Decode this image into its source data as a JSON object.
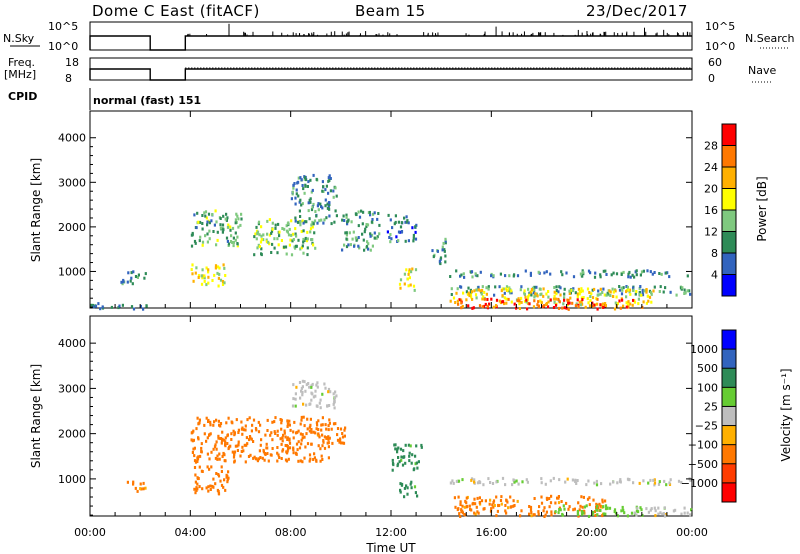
{
  "header": {
    "station": "Dome C East (fitACF)",
    "beam": "Beam 15",
    "date": "23/Dec/2017"
  },
  "strips": {
    "nsky_label": "N.Sky",
    "nsearch_label": "N.Search",
    "freq_label_1": "Freq.",
    "freq_label_2": "[MHz]",
    "nave_label": "Nave",
    "cpid_label": "CPID",
    "cpid_value": "normal (fast) 151",
    "left_ticks_top": [
      "10^5",
      "10^0"
    ],
    "right_ticks_top": [
      "10^5",
      "10^0"
    ],
    "left_ticks_freq": [
      "18",
      "8"
    ],
    "right_ticks_nave": [
      "60",
      "0"
    ]
  },
  "axes": {
    "xlabel": "Time UT",
    "ylabel": "Slant Range [km]",
    "x_ticks": [
      "00:00",
      "04:00",
      "08:00",
      "12:00",
      "16:00",
      "20:00",
      "00:00"
    ],
    "y_ticks": [
      "1000",
      "2000",
      "3000",
      "4000"
    ]
  },
  "power_colorbar": {
    "label": "Power [dB]",
    "ticks": [
      "4",
      "8",
      "12",
      "16",
      "20",
      "24",
      "28"
    ],
    "colors": [
      "#0000ff",
      "#3264be",
      "#2e8b57",
      "#7fc97f",
      "#ffff00",
      "#ffb000",
      "#ff7800",
      "#ff0000"
    ]
  },
  "velocity_colorbar": {
    "label": "Velocity [m s⁻¹]",
    "ticks": [
      "1000",
      "500",
      "100",
      "25",
      "−25",
      "−100",
      "−500",
      "−1000"
    ],
    "colors": [
      "#0000ff",
      "#3264be",
      "#2e8b57",
      "#66cc33",
      "#bebebe",
      "#ffb000",
      "#ff7800",
      "#ff3c00",
      "#ff0000"
    ]
  },
  "chart_data": [
    {
      "type": "line",
      "panel": "N.Sky / N.Search",
      "x_unit": "hours UT",
      "xlim": [
        0,
        24
      ],
      "series": [
        {
          "x": [
            0,
            2.4,
            2.4,
            3.8,
            3.8,
            24
          ],
          "values": [
            "high",
            "high",
            "gap",
            "gap",
            "high",
            "high"
          ]
        }
      ]
    },
    {
      "type": "line",
      "panel": "Freq. / Nave",
      "x_unit": "hours UT",
      "xlim": [
        0,
        24
      ],
      "ylim": [
        8,
        18
      ],
      "data_gap_hours": [
        2.4,
        3.8
      ]
    },
    {
      "type": "heatmap",
      "panel": "Power",
      "x_unit": "hours UT",
      "xlim": [
        0,
        24
      ],
      "ylabel": "Slant Range [km]",
      "ylim": [
        180,
        4600
      ],
      "clim": [
        0,
        30
      ],
      "regions": [
        {
          "t": [
            1.2,
            2.2
          ],
          "r": [
            750,
            1050
          ],
          "v": 9
        },
        {
          "t": [
            4.0,
            5.4
          ],
          "r": [
            700,
            1200
          ],
          "v": 19
        },
        {
          "t": [
            4.0,
            6.0
          ],
          "r": [
            1600,
            2400
          ],
          "v": 12
        },
        {
          "t": [
            6.5,
            9.0
          ],
          "r": [
            1400,
            2200
          ],
          "v": 14
        },
        {
          "t": [
            8.0,
            9.8
          ],
          "r": [
            2100,
            3200
          ],
          "v": 9
        },
        {
          "t": [
            10.0,
            11.5
          ],
          "r": [
            1500,
            2400
          ],
          "v": 11
        },
        {
          "t": [
            11.8,
            13.0
          ],
          "r": [
            1700,
            2300
          ],
          "v": 8
        },
        {
          "t": [
            12.3,
            13.0
          ],
          "r": [
            600,
            1100
          ],
          "v": 18
        },
        {
          "t": [
            13.6,
            14.2
          ],
          "r": [
            1200,
            1800
          ],
          "v": 9
        },
        {
          "t": [
            14.3,
            24.0
          ],
          "r": [
            900,
            1050
          ],
          "v": 9
        },
        {
          "t": [
            14.3,
            24.0
          ],
          "r": [
            500,
            700
          ],
          "v": 10
        },
        {
          "t": [
            14.3,
            22.5
          ],
          "r": [
            280,
            650
          ],
          "v": 19
        },
        {
          "t": [
            14.5,
            22.0
          ],
          "r": [
            180,
            420
          ],
          "v": 27
        },
        {
          "t": [
            0.0,
            2.4
          ],
          "r": [
            180,
            320
          ],
          "v": 7
        }
      ]
    },
    {
      "type": "heatmap",
      "panel": "Velocity",
      "x_unit": "hours UT",
      "xlim": [
        0,
        24
      ],
      "ylabel": "Slant Range [km]",
      "ylim": [
        180,
        4600
      ],
      "regions": [
        {
          "t": [
            1.4,
            2.2
          ],
          "r": [
            750,
            1000
          ],
          "v": -150
        },
        {
          "t": [
            4.0,
            5.5
          ],
          "r": [
            700,
            1300
          ],
          "v": -300
        },
        {
          "t": [
            4.0,
            9.5
          ],
          "r": [
            1400,
            2400
          ],
          "v": -200
        },
        {
          "t": [
            8.0,
            9.8
          ],
          "r": [
            2600,
            3200
          ],
          "v": 0
        },
        {
          "t": [
            9.0,
            10.2
          ],
          "r": [
            1800,
            2300
          ],
          "v": -150
        },
        {
          "t": [
            12.3,
            13.0
          ],
          "r": [
            600,
            1000
          ],
          "v": 150
        },
        {
          "t": [
            12.0,
            13.2
          ],
          "r": [
            1200,
            1800
          ],
          "v": 150
        },
        {
          "t": [
            14.3,
            24.0
          ],
          "r": [
            900,
            1050
          ],
          "v": 0
        },
        {
          "t": [
            14.5,
            20.5
          ],
          "r": [
            200,
            650
          ],
          "v": -150
        },
        {
          "t": [
            18.5,
            22.0
          ],
          "r": [
            200,
            450
          ],
          "v": 70
        },
        {
          "t": [
            21.5,
            24.0
          ],
          "r": [
            200,
            400
          ],
          "v": 0
        }
      ]
    }
  ]
}
